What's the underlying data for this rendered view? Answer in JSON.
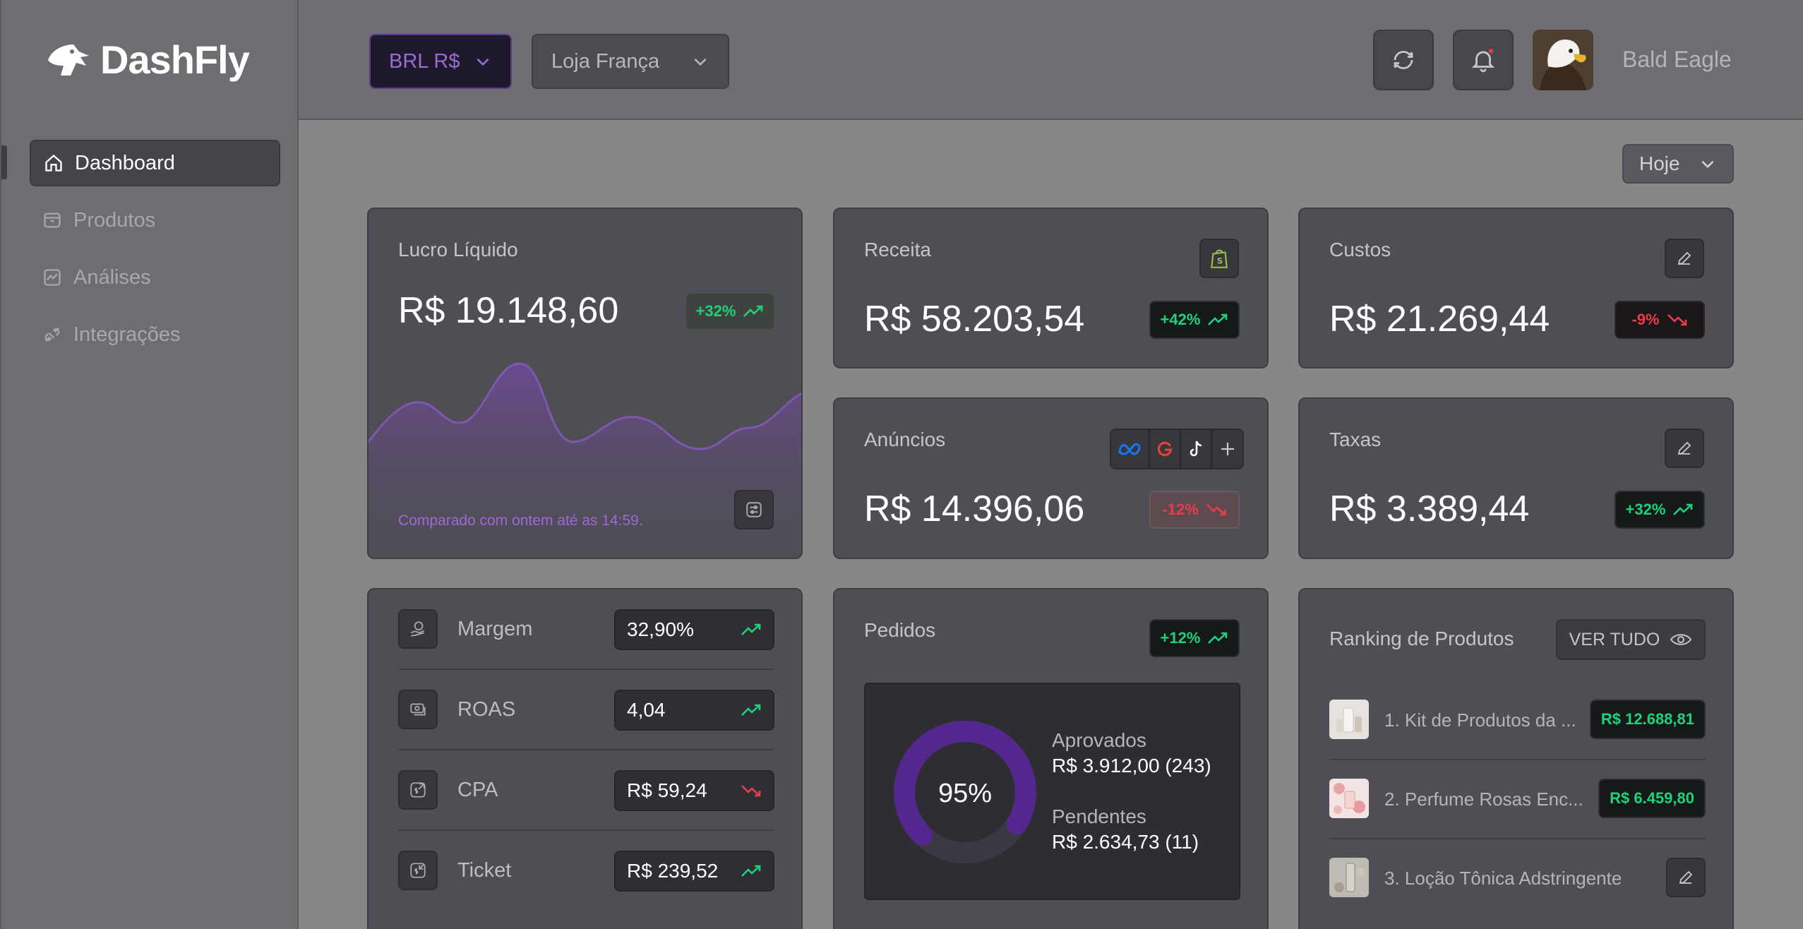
{
  "app": {
    "name": "DashFly"
  },
  "sidebar": {
    "items": [
      {
        "label": "Dashboard",
        "icon": "home-icon",
        "active": true
      },
      {
        "label": "Produtos",
        "icon": "package-icon",
        "active": false
      },
      {
        "label": "Análises",
        "icon": "chart-icon",
        "active": false
      },
      {
        "label": "Integrações",
        "icon": "plug-icon",
        "active": false
      }
    ]
  },
  "header": {
    "currency": "BRL R$",
    "store": "Loja França",
    "username": "Bald Eagle"
  },
  "period": {
    "label": "Hoje"
  },
  "cards": {
    "lucro": {
      "title": "Lucro Líquido",
      "value": "R$ 19.148,60",
      "change": "+32%",
      "footnote": "Comparado com ontem até as 14:59."
    },
    "receita": {
      "title": "Receita",
      "value": "R$ 58.203,54",
      "change": "+42%"
    },
    "custos": {
      "title": "Custos",
      "value": "R$ 21.269,44",
      "change": "-9%"
    },
    "anuncios": {
      "title": "Anúncios",
      "value": "R$ 14.396,06",
      "change": "-12%"
    },
    "taxas": {
      "title": "Taxas",
      "value": "R$ 3.389,44",
      "change": "+32%"
    }
  },
  "metrics": [
    {
      "label": "Margem",
      "value": "32,90%",
      "trend": "up"
    },
    {
      "label": "ROAS",
      "value": "4,04",
      "trend": "up"
    },
    {
      "label": "CPA",
      "value": "R$ 59,24",
      "trend": "down"
    },
    {
      "label": "Ticket",
      "value": "R$ 239,52",
      "trend": "up"
    }
  ],
  "pedidos": {
    "title": "Pedidos",
    "change": "+12%",
    "percent_label": "95%",
    "percent": 0.95,
    "approved_label": "Aprovados",
    "approved_value": "R$ 3.912,00 (243)",
    "pending_label": "Pendentes",
    "pending_value": "R$ 2.634,73 (11)"
  },
  "ranking": {
    "title": "Ranking de Produtos",
    "view_all": "VER TUDO",
    "items": [
      {
        "name": "1. Kit de Produtos da ...",
        "value": "R$ 12.688,81"
      },
      {
        "name": "2. Perfume Rosas Enc...",
        "value": "R$ 6.459,80"
      },
      {
        "name": "3. Loção Tônica Adstringente",
        "value": ""
      }
    ]
  },
  "colors": {
    "accent": "#7c4bd0",
    "positive": "#1fd17a",
    "negative": "#ea3b4c"
  }
}
